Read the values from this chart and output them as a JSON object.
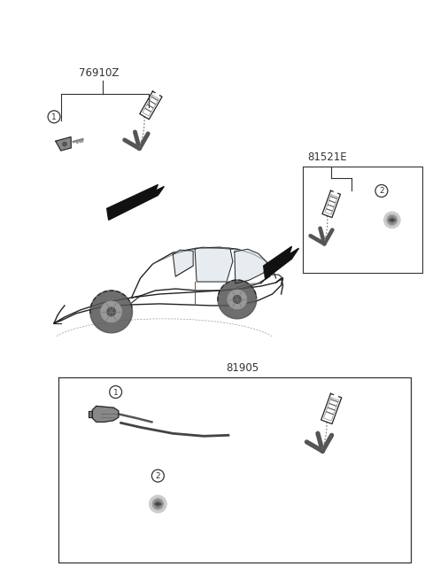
{
  "bg_color": "#ffffff",
  "labels": {
    "top_left_part": "76910Z",
    "top_right_part": "81521E",
    "bottom_part": "81905"
  },
  "fig_width": 4.8,
  "fig_height": 6.57,
  "dpi": 100,
  "color_main": "#333333",
  "color_dark": "#222222",
  "color_gray": "#888888",
  "color_lgray": "#aaaaaa",
  "color_key": "#666666"
}
